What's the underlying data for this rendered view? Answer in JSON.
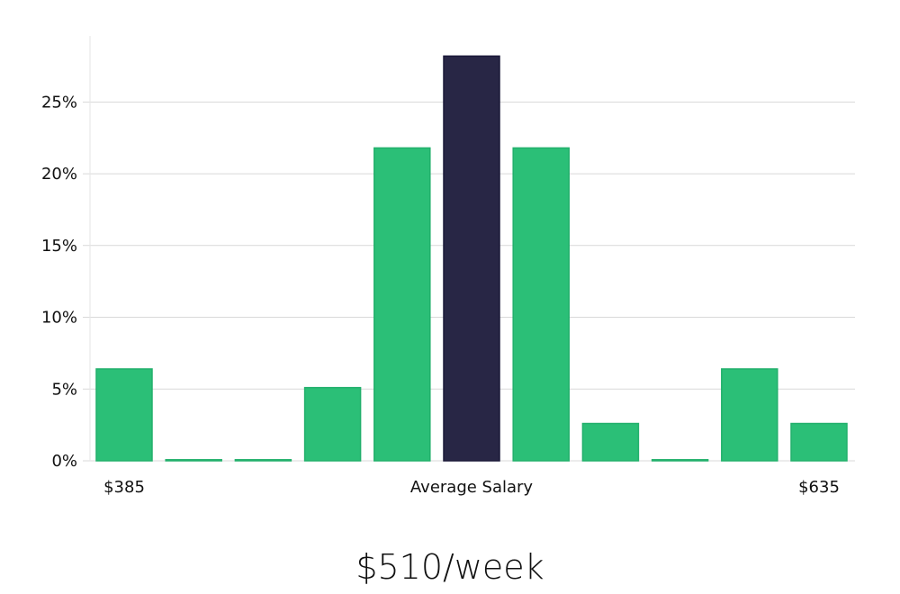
{
  "colors": {
    "bar": "#2bbf77",
    "bar_highlight": "#282645",
    "grid": "#d9d9d9",
    "axis": "#e6e6e6"
  },
  "chart_data": {
    "type": "bar",
    "categories": [
      "1",
      "2",
      "3",
      "4",
      "5",
      "6",
      "7",
      "8",
      "9",
      "10",
      "11"
    ],
    "values": [
      6.4,
      0.0,
      0.0,
      5.1,
      21.8,
      28.2,
      21.8,
      2.6,
      0.0,
      6.4,
      2.6
    ],
    "highlight_index": 5,
    "ylim": [
      0,
      29.6
    ],
    "yticks": [
      0,
      5,
      10,
      15,
      20,
      25
    ],
    "ytick_labels": [
      "0%",
      "5%",
      "10%",
      "15%",
      "20%",
      "25%"
    ],
    "grid": true,
    "x_labels": {
      "left": "$385",
      "center": "Average Salary",
      "right": "$635"
    }
  },
  "footer": {
    "salary": "$510/week"
  }
}
